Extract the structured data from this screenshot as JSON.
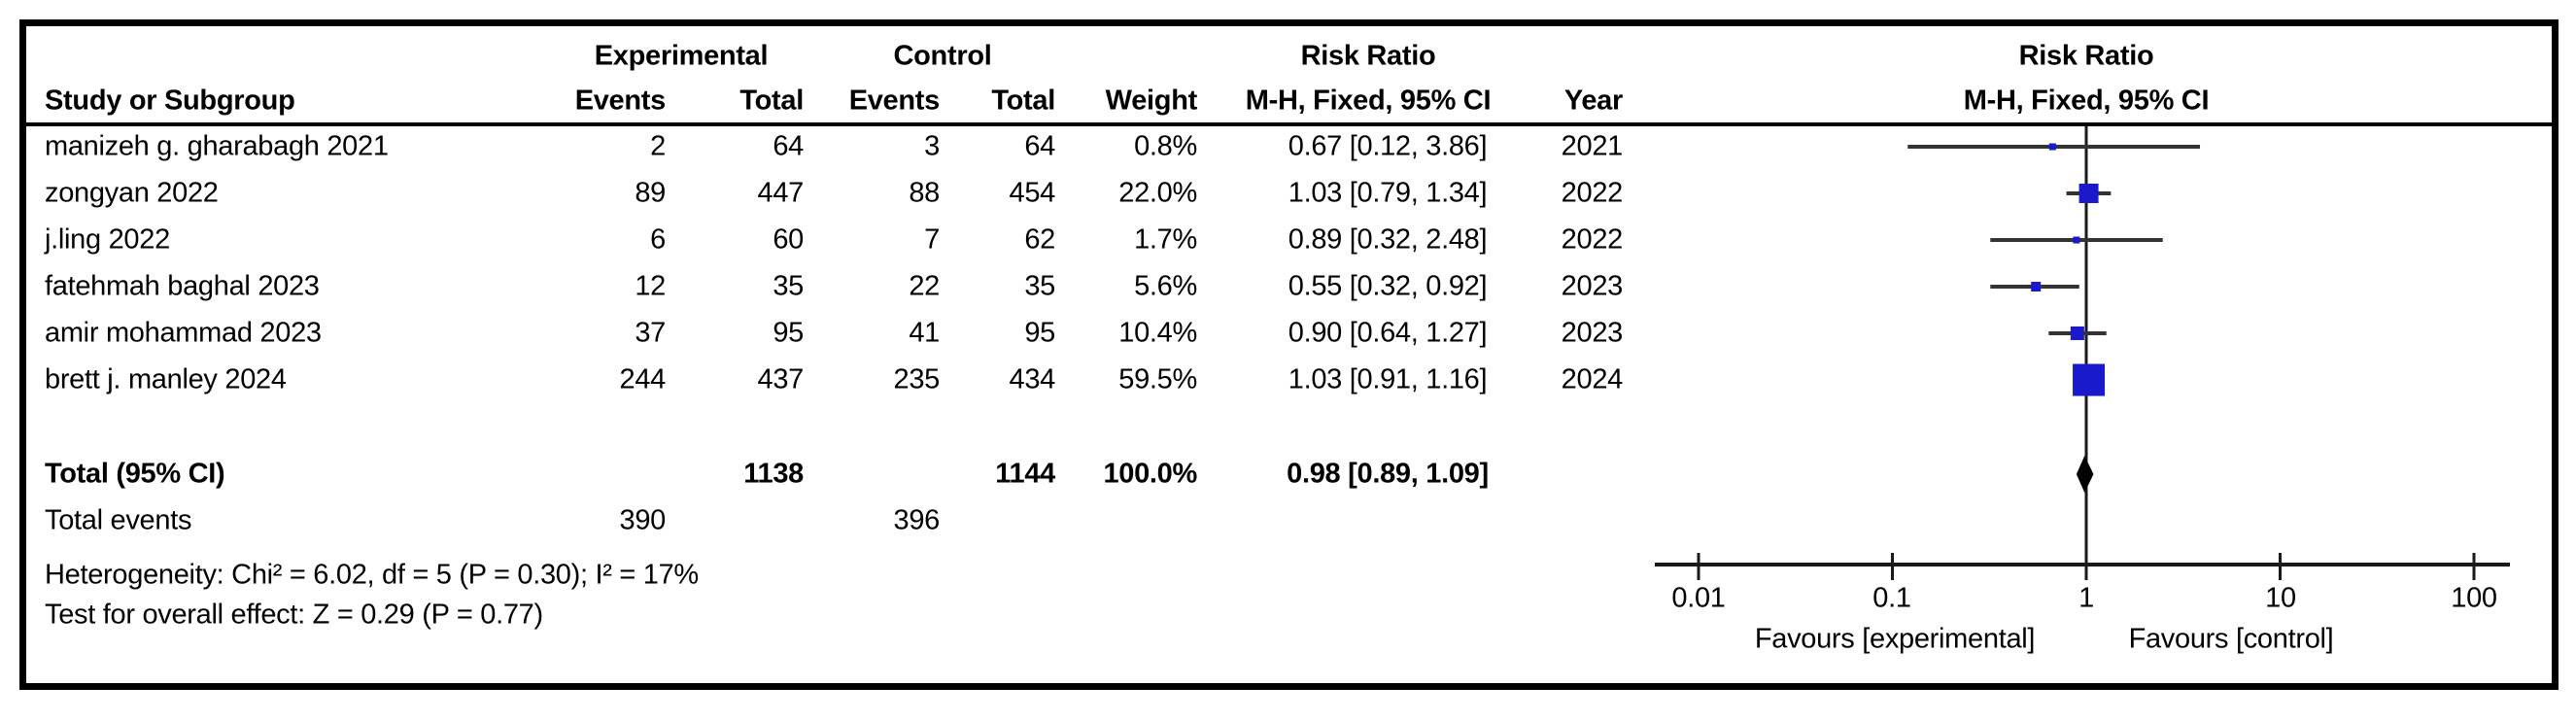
{
  "header": {
    "experimental": "Experimental",
    "control": "Control",
    "risk_ratio": "Risk Ratio",
    "study_or_subgroup": "Study or Subgroup",
    "events": "Events",
    "total": "Total",
    "weight": "Weight",
    "mh_fixed_ci": "M-H, Fixed, 95% CI",
    "year": "Year",
    "plot_title_line1": "Risk Ratio",
    "plot_title_line2": "M-H, Fixed, 95% CI"
  },
  "rows": [
    {
      "study": "manizeh g. gharabagh 2021",
      "exp_events": "2",
      "exp_total": "64",
      "ctrl_events": "3",
      "ctrl_total": "64",
      "weight": "0.8%",
      "rr_ci": "0.67 [0.12, 3.86]",
      "year": "2021"
    },
    {
      "study": "zongyan 2022",
      "exp_events": "89",
      "exp_total": "447",
      "ctrl_events": "88",
      "ctrl_total": "454",
      "weight": "22.0%",
      "rr_ci": "1.03 [0.79, 1.34]",
      "year": "2022"
    },
    {
      "study": "j.ling 2022",
      "exp_events": "6",
      "exp_total": "60",
      "ctrl_events": "7",
      "ctrl_total": "62",
      "weight": "1.7%",
      "rr_ci": "0.89 [0.32, 2.48]",
      "year": "2022"
    },
    {
      "study": "fatehmah baghal 2023",
      "exp_events": "12",
      "exp_total": "35",
      "ctrl_events": "22",
      "ctrl_total": "35",
      "weight": "5.6%",
      "rr_ci": "0.55 [0.32, 0.92]",
      "year": "2023"
    },
    {
      "study": "amir mohammad 2023",
      "exp_events": "37",
      "exp_total": "95",
      "ctrl_events": "41",
      "ctrl_total": "95",
      "weight": "10.4%",
      "rr_ci": "0.90 [0.64, 1.27]",
      "year": "2023"
    },
    {
      "study": "brett j. manley 2024",
      "exp_events": "244",
      "exp_total": "437",
      "ctrl_events": "235",
      "ctrl_total": "434",
      "weight": "59.5%",
      "rr_ci": "1.03 [0.91, 1.16]",
      "year": "2024"
    }
  ],
  "totals": {
    "label": "Total (95% CI)",
    "exp_total": "1138",
    "ctrl_total": "1144",
    "weight": "100.0%",
    "rr_ci": "0.98 [0.89, 1.09]",
    "total_events_label": "Total events",
    "exp_events": "390",
    "ctrl_events": "396",
    "heterogeneity": "Heterogeneity: Chi² = 6.02, df = 5 (P = 0.30); I² = 17%",
    "overall_effect": "Test for overall effect: Z = 0.29 (P = 0.77)"
  },
  "axis": {
    "tick_labels": [
      "0.01",
      "0.1",
      "1",
      "10",
      "100"
    ],
    "favours_left": "Favours [experimental]",
    "favours_right": "Favours [control]"
  },
  "chart_data": {
    "type": "forest",
    "effect_measure": "Risk Ratio",
    "method": "M-H, Fixed, 95% CI",
    "x_scale": "log",
    "xlim": [
      0.01,
      100
    ],
    "x_ticks": [
      0.01,
      0.1,
      1,
      10,
      100
    ],
    "ref_line": 1,
    "studies": [
      {
        "name": "manizeh g. gharabagh 2021",
        "year": 2021,
        "exp_events": 2,
        "exp_total": 64,
        "ctrl_events": 3,
        "ctrl_total": 64,
        "weight_pct": 0.8,
        "rr": 0.67,
        "ci_low": 0.12,
        "ci_high": 3.86
      },
      {
        "name": "zongyan 2022",
        "year": 2022,
        "exp_events": 89,
        "exp_total": 447,
        "ctrl_events": 88,
        "ctrl_total": 454,
        "weight_pct": 22.0,
        "rr": 1.03,
        "ci_low": 0.79,
        "ci_high": 1.34
      },
      {
        "name": "j.ling 2022",
        "year": 2022,
        "exp_events": 6,
        "exp_total": 60,
        "ctrl_events": 7,
        "ctrl_total": 62,
        "weight_pct": 1.7,
        "rr": 0.89,
        "ci_low": 0.32,
        "ci_high": 2.48
      },
      {
        "name": "fatehmah baghal 2023",
        "year": 2023,
        "exp_events": 12,
        "exp_total": 35,
        "ctrl_events": 22,
        "ctrl_total": 35,
        "weight_pct": 5.6,
        "rr": 0.55,
        "ci_low": 0.32,
        "ci_high": 0.92
      },
      {
        "name": "amir mohammad 2023",
        "year": 2023,
        "exp_events": 37,
        "exp_total": 95,
        "ctrl_events": 41,
        "ctrl_total": 95,
        "weight_pct": 10.4,
        "rr": 0.9,
        "ci_low": 0.64,
        "ci_high": 1.27
      },
      {
        "name": "brett j. manley 2024",
        "year": 2024,
        "exp_events": 244,
        "exp_total": 437,
        "ctrl_events": 235,
        "ctrl_total": 434,
        "weight_pct": 59.5,
        "rr": 1.03,
        "ci_low": 0.91,
        "ci_high": 1.16
      }
    ],
    "total": {
      "rr": 0.98,
      "ci_low": 0.89,
      "ci_high": 1.09,
      "total_exp": 1138,
      "total_ctrl": 1144,
      "weight_pct": 100.0
    }
  },
  "colors": {
    "marker": "#1a1acc",
    "diamond": "#000000",
    "ci_line": "#333333",
    "axis": "#1a1a1a",
    "text": "#000000",
    "border": "#000000",
    "background": "#ffffff"
  }
}
